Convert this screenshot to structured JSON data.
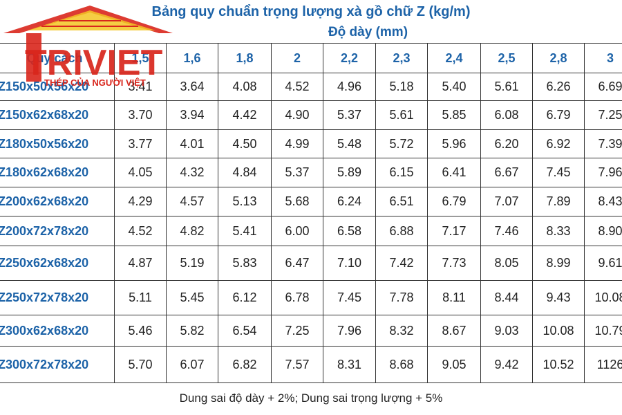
{
  "header": {
    "title": "Bảng quy chuẩn trọng lượng xà gồ chữ Z (kg/m)",
    "subtitle": "Độ dày (mm)"
  },
  "logo": {
    "brand": "TRIVIET",
    "slogan": "THÉP CỦA NGƯỜI VIỆT"
  },
  "table": {
    "columns": [
      "Quy cách",
      "1,5",
      "1,6",
      "1,8",
      "2",
      "2,2",
      "2,3",
      "2,4",
      "2,5",
      "2,8",
      "3"
    ],
    "rows": [
      [
        "Z150x50x56x20",
        "3.41",
        "3.64",
        "4.08",
        "4.52",
        "4.96",
        "5.18",
        "5.40",
        "5.61",
        "6.26",
        "6.69"
      ],
      [
        "Z150x62x68x20",
        "3.70",
        "3.94",
        "4.42",
        "4.90",
        "5.37",
        "5.61",
        "5.85",
        "6.08",
        "6.79",
        "7.25"
      ],
      [
        "Z180x50x56x20",
        "3.77",
        "4.01",
        "4.50",
        "4.99",
        "5.48",
        "5.72",
        "5.96",
        "6.20",
        "6.92",
        "7.39"
      ],
      [
        "Z180x62x68x20",
        "4.05",
        "4.32",
        "4.84",
        "5.37",
        "5.89",
        "6.15",
        "6.41",
        "6.67",
        "7.45",
        "7.96"
      ],
      [
        "Z200x62x68x20",
        "4.29",
        "4.57",
        "5.13",
        "5.68",
        "6.24",
        "6.51",
        "6.79",
        "7.07",
        "7.89",
        "8.43"
      ],
      [
        "Z200x72x78x20",
        "4.52",
        "4.82",
        "5.41",
        "6.00",
        "6.58",
        "6.88",
        "7.17",
        "7.46",
        "8.33",
        "8.90"
      ],
      [
        "Z250x62x68x20",
        "4.87",
        "5.19",
        "5.83",
        "6.47",
        "7.10",
        "7.42",
        "7.73",
        "8.05",
        "8.99",
        "9.61"
      ],
      [
        "Z250x72x78x20",
        "5.11",
        "5.45",
        "6.12",
        "6.78",
        "7.45",
        "7.78",
        "8.11",
        "8.44",
        "9.43",
        "10.08"
      ],
      [
        "Z300x62x68x20",
        "5.46",
        "5.82",
        "6.54",
        "7.25",
        "7.96",
        "8.32",
        "8.67",
        "9.03",
        "10.08",
        "10.79"
      ],
      [
        "Z300x72x78x20",
        "5.70",
        "6.07",
        "6.82",
        "7.57",
        "8.31",
        "8.68",
        "9.05",
        "9.42",
        "10.52",
        "1126"
      ]
    ]
  },
  "footer": {
    "note": "Dung sai độ dày + 2%; Dung sai trọng lượng + 5%"
  }
}
